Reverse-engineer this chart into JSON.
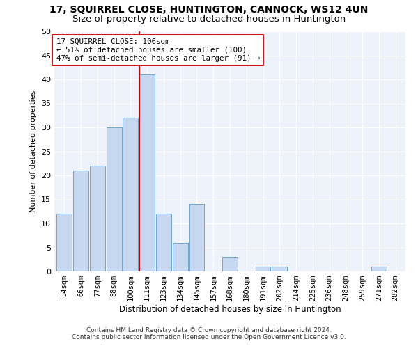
{
  "title": "17, SQUIRREL CLOSE, HUNTINGTON, CANNOCK, WS12 4UN",
  "subtitle": "Size of property relative to detached houses in Huntington",
  "xlabel": "Distribution of detached houses by size in Huntington",
  "ylabel": "Number of detached properties",
  "categories": [
    "54sqm",
    "66sqm",
    "77sqm",
    "88sqm",
    "100sqm",
    "111sqm",
    "123sqm",
    "134sqm",
    "145sqm",
    "157sqm",
    "168sqm",
    "180sqm",
    "191sqm",
    "202sqm",
    "214sqm",
    "225sqm",
    "236sqm",
    "248sqm",
    "259sqm",
    "271sqm",
    "282sqm"
  ],
  "values": [
    12,
    21,
    22,
    30,
    32,
    41,
    12,
    6,
    14,
    0,
    3,
    0,
    1,
    1,
    0,
    0,
    0,
    0,
    0,
    1,
    0
  ],
  "bar_color": "#c5d8f0",
  "bar_edge_color": "#6ea6d0",
  "vline_x": 4.55,
  "vline_color": "#cc0000",
  "annotation_text": "17 SQUIRREL CLOSE: 106sqm\n← 51% of detached houses are smaller (100)\n47% of semi-detached houses are larger (91) →",
  "annotation_box_color": "#ffffff",
  "annotation_box_edge": "#cc0000",
  "ylim": [
    0,
    50
  ],
  "yticks": [
    0,
    5,
    10,
    15,
    20,
    25,
    30,
    35,
    40,
    45,
    50
  ],
  "footer": "Contains HM Land Registry data © Crown copyright and database right 2024.\nContains public sector information licensed under the Open Government Licence v3.0.",
  "bg_color": "#eef2fa",
  "title_fontsize": 10,
  "subtitle_fontsize": 9.5
}
